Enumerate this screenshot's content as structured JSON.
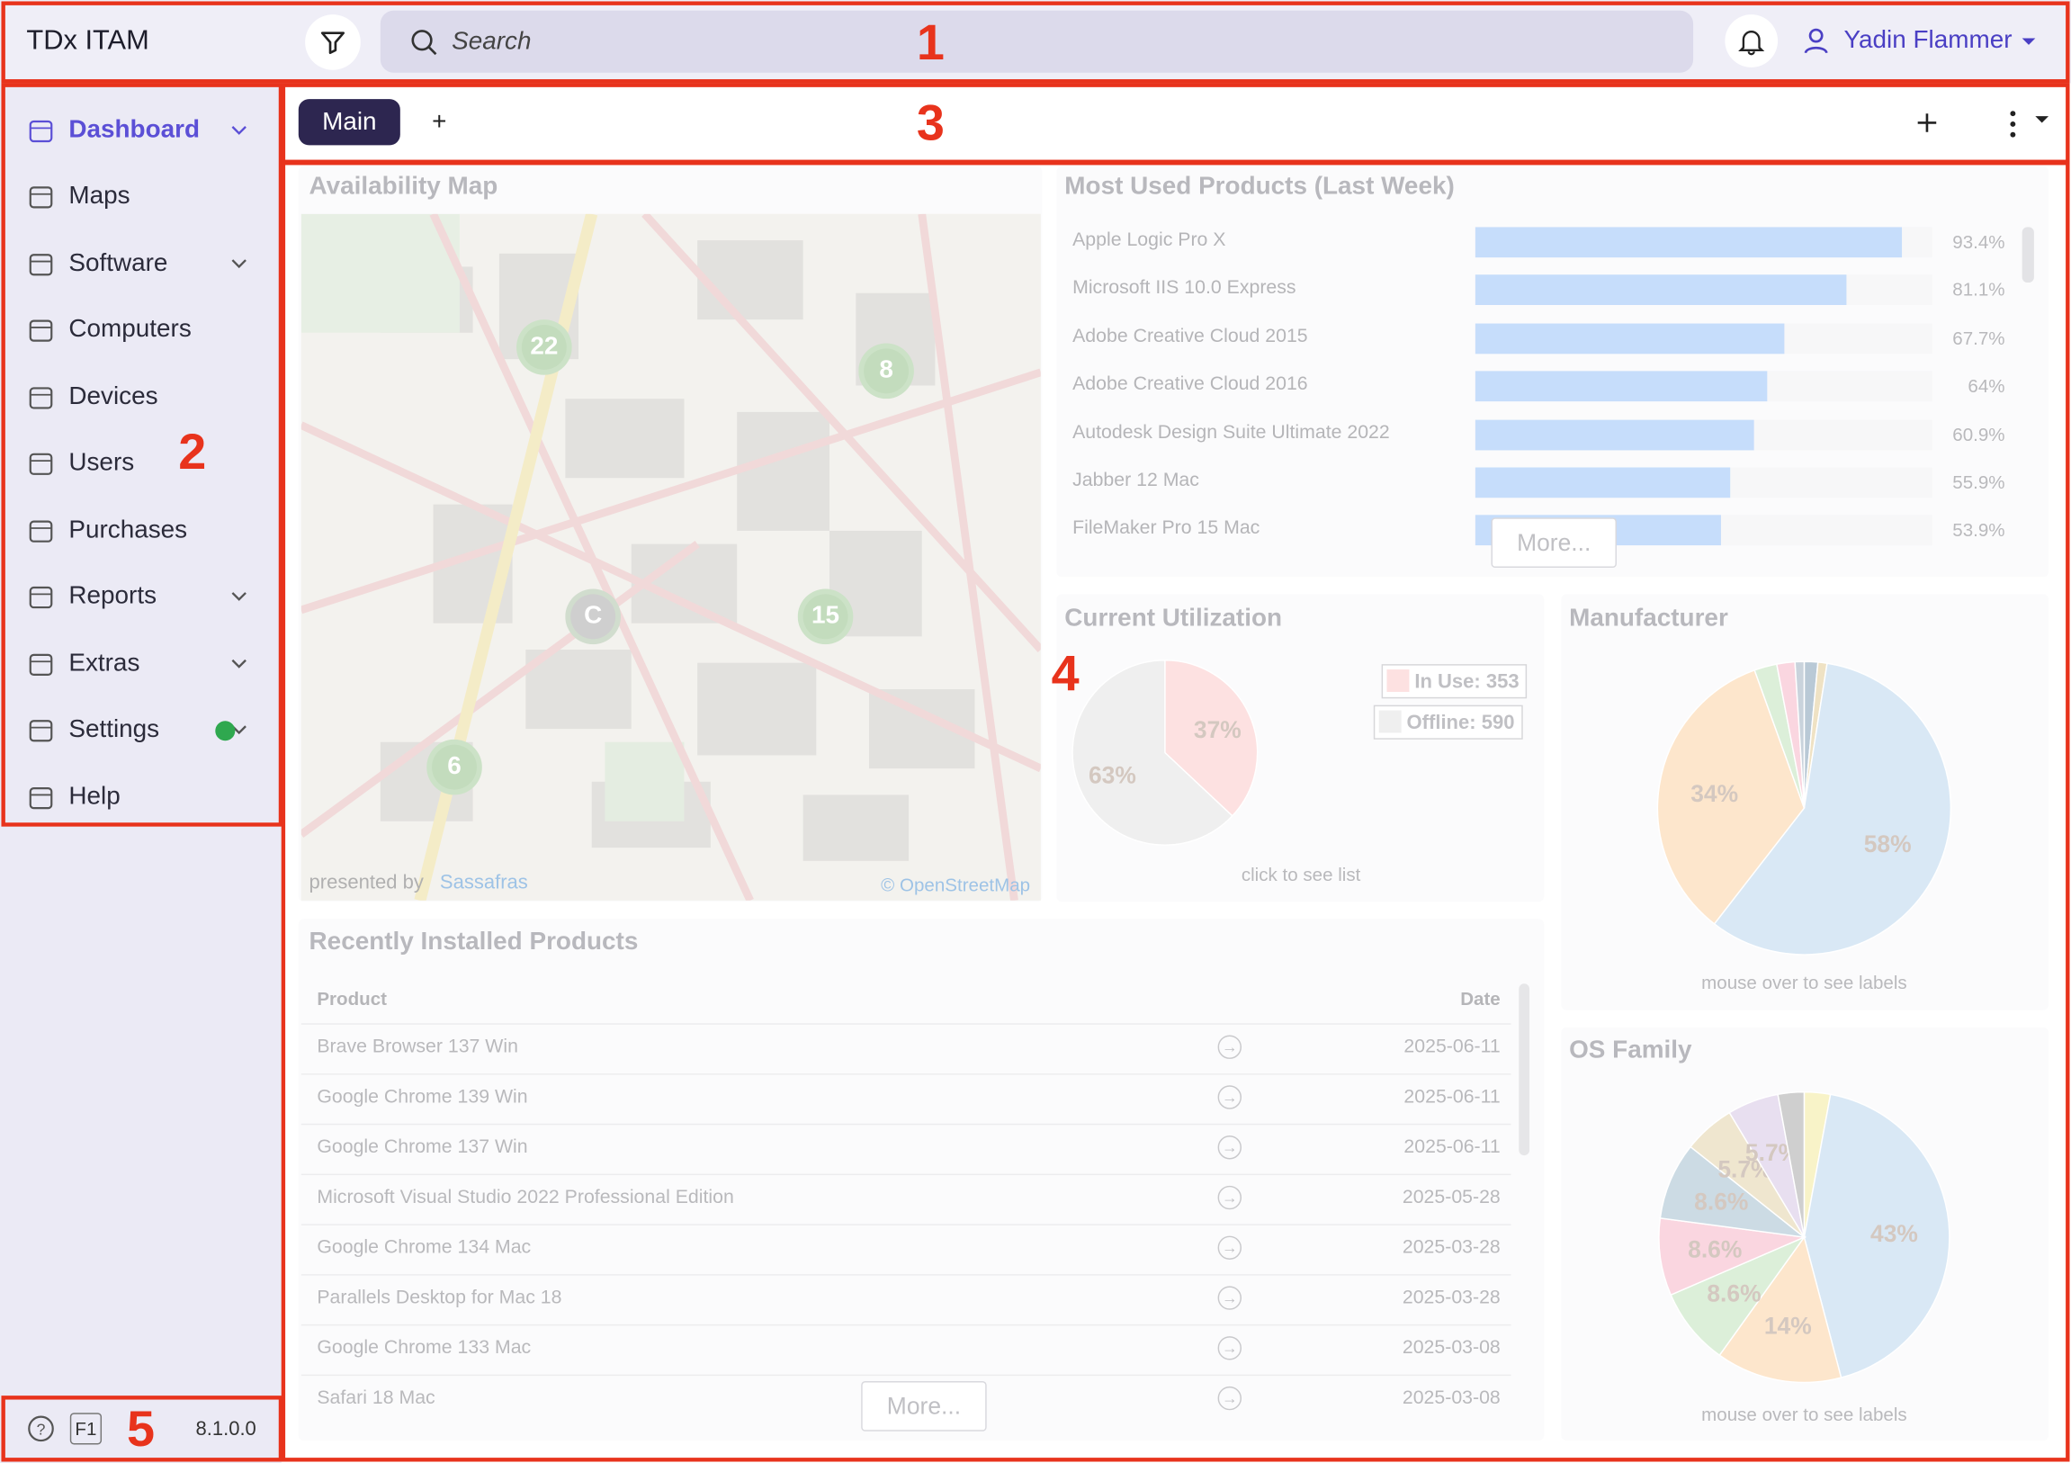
{
  "header": {
    "title": "TDx ITAM",
    "search": "Search",
    "user": "Yadin Flammer"
  },
  "sidebar": {
    "items": [
      "Dashboard",
      "Maps",
      "Software",
      "Computers",
      "Devices",
      "Users",
      "Purchases",
      "Reports",
      "Extras",
      "Settings",
      "Help"
    ],
    "help_key": "F1",
    "version": "8.1.0.0"
  },
  "tabs": {
    "items": [
      "Main",
      "+"
    ]
  },
  "availability_map": {
    "title": "Availability Map",
    "clusters": [
      "22",
      "8",
      "C",
      "15",
      "6"
    ],
    "credit": "presented by",
    "credit_link": "Sassafras",
    "attribution": "© OpenStreetMap"
  },
  "chart_data": [
    {
      "type": "bar",
      "title": "Most Used Products (Last Week)",
      "categories": [
        "Apple Logic Pro X",
        "Microsoft IIS 10.0 Express",
        "Adobe Creative Cloud 2015",
        "Adobe Creative Cloud 2016",
        "Autodesk Design Suite Ultimate 2022",
        "Jabber 12 Mac",
        "FileMaker Pro 15 Mac"
      ],
      "values": [
        93.4,
        81.1,
        67.7,
        64,
        60.9,
        55.9,
        53.9
      ],
      "value_labels": [
        "93.4%",
        "81.1%",
        "67.7%",
        "64%",
        "60.9%",
        "55.9%",
        "53.9%"
      ],
      "xlim": [
        0,
        100
      ],
      "color": "#c6ddfb",
      "more": "More..."
    },
    {
      "type": "pie",
      "title": "Current Utilization",
      "categories": [
        "In Use: 353",
        "Offline: 590"
      ],
      "values": [
        37,
        63
      ],
      "value_labels": [
        "37%",
        "63%"
      ],
      "colors": [
        "#fde1e1",
        "#efefef"
      ],
      "note": "click to see list"
    },
    {
      "type": "pie",
      "title": "Manufacturer",
      "values": [
        1.5,
        1,
        58,
        34,
        2.5,
        2,
        1
      ],
      "value_labels": [
        null,
        null,
        "58%",
        "34%",
        null,
        null,
        null
      ],
      "colors": [
        "#b9c9d6",
        "#efe2c4",
        "#d9e8f5",
        "#fde6cc",
        "#dcefd9",
        "#fad6e0",
        "#c9d3dc"
      ],
      "note": "mouse over to see labels"
    },
    {
      "type": "pie",
      "title": "OS Family",
      "values": [
        2.9,
        43,
        14,
        8.6,
        8.6,
        8.6,
        5.7,
        5.7,
        2.9
      ],
      "value_labels": [
        null,
        "43%",
        "14%",
        "8.6%",
        "8.6%",
        "8.6%",
        "5.7%",
        "5.7%",
        null
      ],
      "colors": [
        "#f8f3c8",
        "#d9e8f5",
        "#fde6cc",
        "#dcefd9",
        "#fad6e0",
        "#ccdbe4",
        "#efe6cf",
        "#e8dff0",
        "#cfcfcf"
      ],
      "note": "mouse over to see labels"
    }
  ],
  "recent_installed": {
    "title": "Recently Installed Products",
    "columns": [
      "Product",
      "Date"
    ],
    "rows": [
      [
        "Brave Browser 137 Win",
        "2025-06-11"
      ],
      [
        "Google Chrome 139 Win",
        "2025-06-11"
      ],
      [
        "Google Chrome 137 Win",
        "2025-06-11"
      ],
      [
        "Microsoft Visual Studio 2022 Professional Edition",
        "2025-05-28"
      ],
      [
        "Google Chrome 134 Mac",
        "2025-03-28"
      ],
      [
        "Parallels Desktop for Mac 18",
        "2025-03-28"
      ],
      [
        "Google Chrome 133 Mac",
        "2025-03-08"
      ],
      [
        "Safari 18 Mac",
        "2025-03-08"
      ]
    ],
    "more": "More..."
  },
  "annotations": [
    "1",
    "2",
    "3",
    "4",
    "5"
  ]
}
